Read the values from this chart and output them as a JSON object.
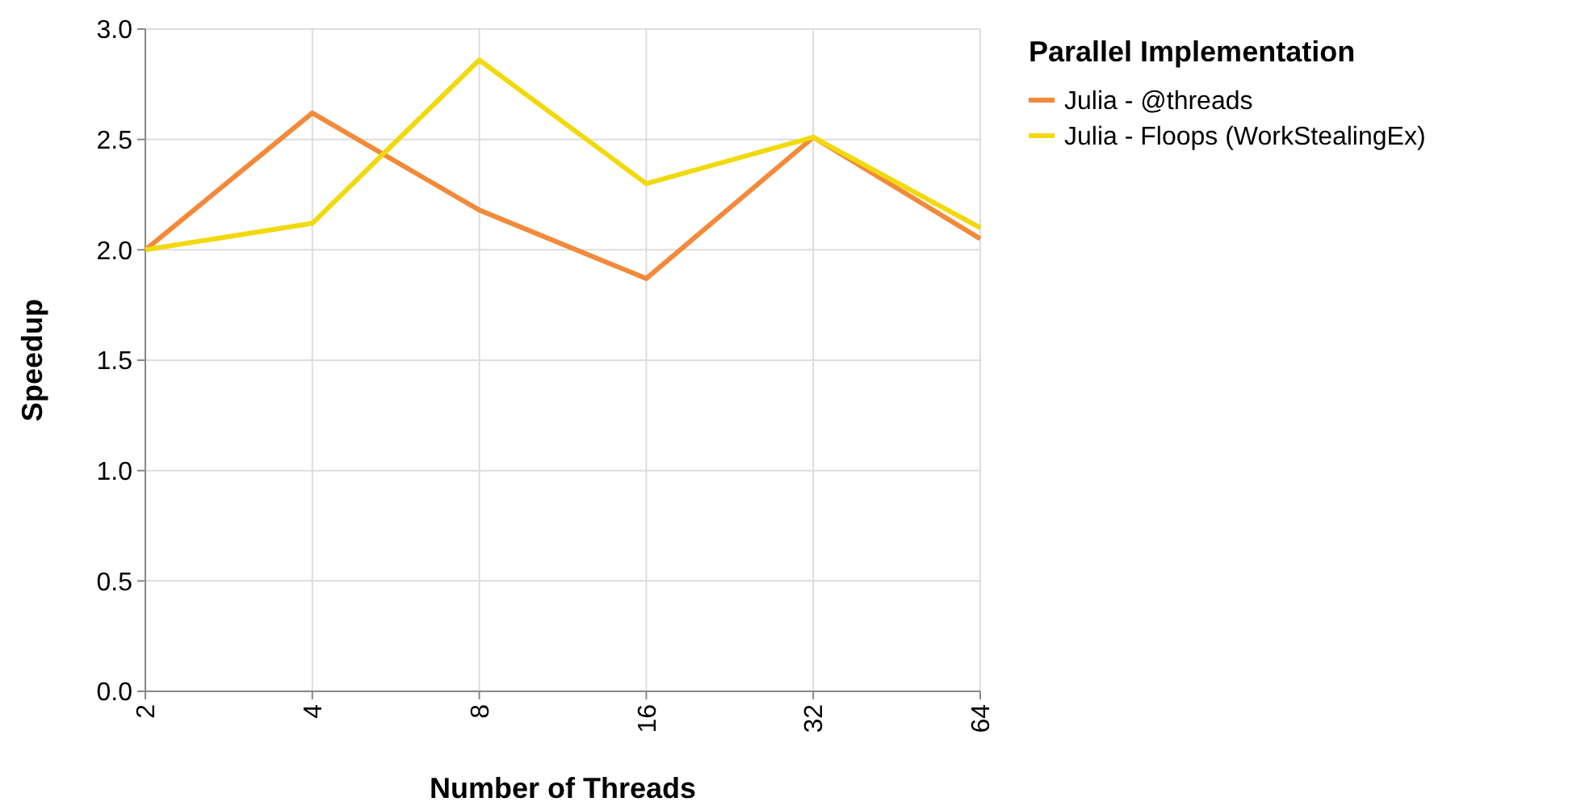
{
  "chart_data": {
    "type": "line",
    "xlabel": "Number of Threads",
    "ylabel": "Speedup",
    "legend_title": "Parallel Implementation",
    "legend": "top right",
    "grid": true,
    "categories": [
      "2",
      "4",
      "8",
      "16",
      "32",
      "64"
    ],
    "ylim": [
      0,
      3
    ],
    "yticks": [
      {
        "value": 0,
        "label": "0.0"
      },
      {
        "value": 0.5,
        "label": "0.5"
      },
      {
        "value": 1,
        "label": "1.0"
      },
      {
        "value": 1.5,
        "label": "1.5"
      },
      {
        "value": 2,
        "label": "2.0"
      },
      {
        "value": 2.5,
        "label": "2.5"
      },
      {
        "value": 3,
        "label": "3.0"
      }
    ],
    "series": [
      {
        "name": "Julia - @threads",
        "color": "#f28a3a",
        "values": [
          2.0,
          2.62,
          2.18,
          1.87,
          2.51,
          2.05
        ]
      },
      {
        "name": "Julia - Floops (WorkStealingEx)",
        "color": "#f2d90c",
        "values": [
          2.0,
          2.12,
          2.86,
          2.3,
          2.51,
          2.1
        ]
      }
    ]
  }
}
